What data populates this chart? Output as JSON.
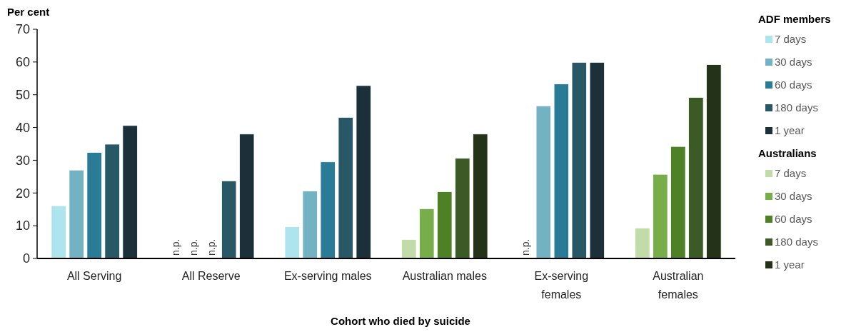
{
  "chart_data": {
    "type": "bar",
    "ylabel": "Per cent",
    "xlabel": "Cohort who died by suicide",
    "legend_title": "ADF members",
    "annotations": [
      "Australians"
    ],
    "categories": [
      "All Serving",
      "All Reserve",
      "Ex-serving males",
      "Australian males",
      "Ex-serving females",
      "Australian females"
    ],
    "ylim": [
      0,
      70
    ],
    "yticks": [
      0,
      10,
      20,
      30,
      40,
      50,
      60,
      70
    ],
    "grid": false,
    "legend": "right",
    "series": [
      {
        "name": "7 days",
        "color": "#ade4ee",
        "values": [
          16.1,
          null,
          9.7,
          null,
          null,
          null
        ],
        "value_labels": [
          null,
          "n.p.",
          null,
          null,
          "n.p.",
          null
        ]
      },
      {
        "name": "30 days",
        "color": "#72b2c3",
        "values": [
          27.0,
          null,
          20.6,
          null,
          46.6,
          null
        ],
        "value_labels": [
          null,
          "n.p.",
          null,
          null,
          null,
          null
        ]
      },
      {
        "name": "60 days",
        "color": "#2a7b96",
        "values": [
          32.4,
          null,
          29.5,
          null,
          53.3,
          null
        ],
        "value_labels": [
          null,
          "n.p.",
          null,
          null,
          null,
          null
        ]
      },
      {
        "name": "180 days",
        "color": "#285766",
        "values": [
          34.9,
          23.7,
          43.1,
          null,
          59.9,
          null
        ]
      },
      {
        "name": "1 year",
        "color": "#1b3039",
        "values": [
          40.6,
          38.0,
          52.8,
          null,
          59.9,
          null
        ]
      },
      {
        "name": "7 days",
        "color": "#c1dba9",
        "values": [
          null,
          null,
          null,
          5.8,
          null,
          9.3
        ]
      },
      {
        "name": "30 days",
        "color": "#77ae4a",
        "values": [
          null,
          null,
          null,
          15.2,
          null,
          25.7
        ]
      },
      {
        "name": "60 days",
        "color": "#4e8025",
        "values": [
          null,
          null,
          null,
          20.4,
          null,
          34.2
        ]
      },
      {
        "name": "180 days",
        "color": "#3c5a26",
        "values": [
          null,
          null,
          null,
          30.6,
          null,
          49.2
        ]
      },
      {
        "name": "1 year",
        "color": "#243217",
        "values": [
          null,
          null,
          null,
          38.0,
          null,
          59.2
        ]
      }
    ]
  }
}
